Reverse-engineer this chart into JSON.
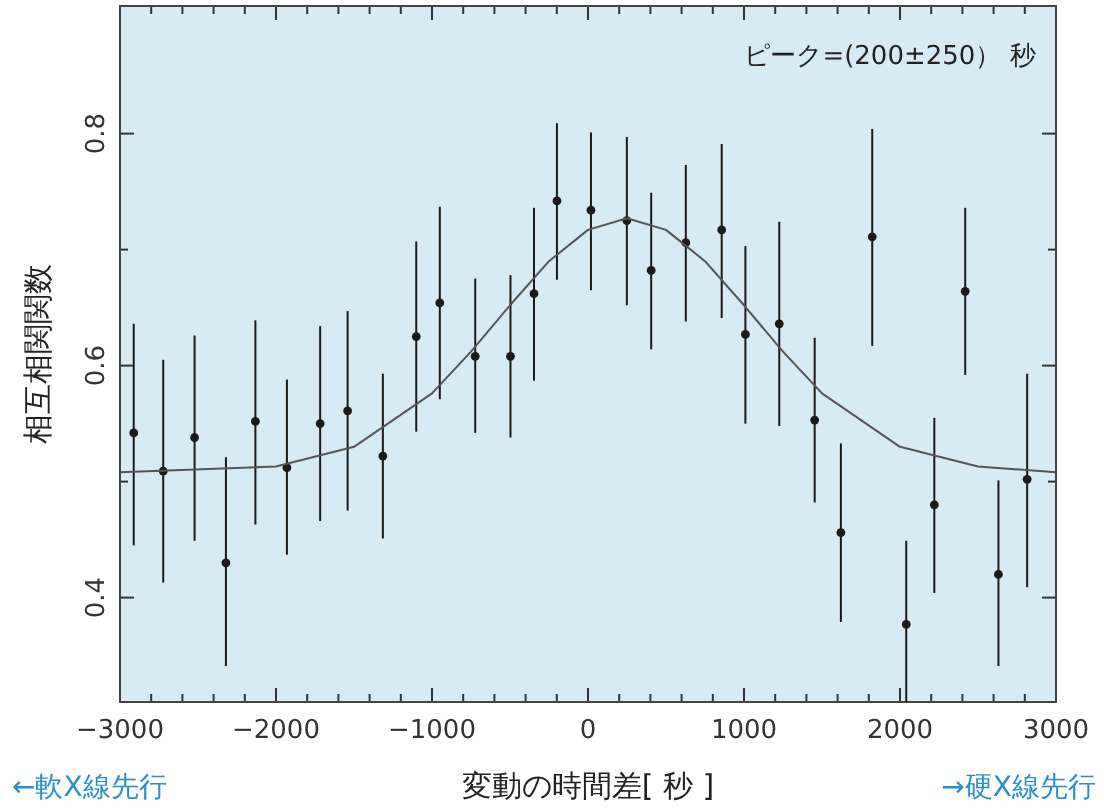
{
  "chart_data": {
    "type": "scatter",
    "xlabel": "変動の時間差[ 秒 ]",
    "ylabel": "相互相関関数",
    "annotations": [
      "ピーク=(200±250） 秒",
      "←軟X線先行",
      "→硬X線先行"
    ],
    "xlim": [
      -3000,
      3000
    ],
    "ylim": [
      0.31,
      0.91
    ],
    "xticks": [
      -3000,
      {
        "value": -2800,
        "label": null
      },
      {
        "value": -2600,
        "label": null
      },
      {
        "value": -2400,
        "label": null
      },
      {
        "value": -2200,
        "label": null
      },
      -2000,
      {
        "value": -1800,
        "label": null
      },
      {
        "value": -1600,
        "label": null
      },
      {
        "value": -1400,
        "label": null
      },
      {
        "value": -1200,
        "label": null
      },
      -1000,
      {
        "value": -800,
        "label": null
      },
      {
        "value": -600,
        "label": null
      },
      {
        "value": -400,
        "label": null
      },
      {
        "value": -200,
        "label": null
      },
      0,
      {
        "value": 200,
        "label": null
      },
      {
        "value": 400,
        "label": null
      },
      {
        "value": 600,
        "label": null
      },
      {
        "value": 800,
        "label": null
      },
      1000,
      {
        "value": 1200,
        "label": null
      },
      {
        "value": 1400,
        "label": null
      },
      {
        "value": 1600,
        "label": null
      },
      {
        "value": 1800,
        "label": null
      },
      2000,
      {
        "value": 2200,
        "label": null
      },
      {
        "value": 2400,
        "label": null
      },
      {
        "value": 2600,
        "label": null
      },
      {
        "value": 2800,
        "label": null
      },
      3000
    ],
    "yticks": [
      0.4,
      {
        "value": 0.5,
        "label": null
      },
      0.6,
      {
        "value": 0.7,
        "label": null
      },
      0.8
    ],
    "series": [
      {
        "marker": "circle",
        "color": "#1a1a1a",
        "x": [
          -2912,
          -2723,
          -2522,
          -2321,
          -2132,
          -1930,
          -1717,
          -1541,
          -1315,
          -1101,
          -950,
          -723,
          -497,
          -346,
          -199,
          19,
          249,
          405,
          627,
          857,
          1009,
          1226,
          1453,
          1621,
          1822,
          2040,
          2220,
          2418,
          2631,
          2815
        ],
        "values": [
          0.542,
          0.509,
          0.538,
          0.43,
          0.552,
          0.512,
          0.55,
          0.561,
          0.522,
          0.625,
          0.654,
          0.608,
          0.608,
          0.662,
          0.742,
          0.734,
          0.725,
          0.682,
          0.706,
          0.717,
          0.627,
          0.636,
          0.553,
          0.456,
          0.711,
          0.377,
          0.48,
          0.664,
          0.42,
          0.502
        ],
        "errors": [
          [
            0.445,
            0.636
          ],
          [
            0.413,
            0.605
          ],
          [
            0.449,
            0.626
          ],
          [
            0.341,
            0.521
          ],
          [
            0.463,
            0.639
          ],
          [
            0.437,
            0.588
          ],
          [
            0.466,
            0.634
          ],
          [
            0.475,
            0.647
          ],
          [
            0.451,
            0.593
          ],
          [
            0.543,
            0.707
          ],
          [
            0.571,
            0.737
          ],
          [
            0.542,
            0.675
          ],
          [
            0.538,
            0.678
          ],
          [
            0.587,
            0.736
          ],
          [
            0.674,
            0.809
          ],
          [
            0.665,
            0.801
          ],
          [
            0.652,
            0.797
          ],
          [
            0.614,
            0.749
          ],
          [
            0.638,
            0.773
          ],
          [
            0.641,
            0.791
          ],
          [
            0.55,
            0.703
          ],
          [
            0.548,
            0.724
          ],
          [
            0.482,
            0.624
          ],
          [
            0.379,
            0.533
          ],
          [
            0.617,
            0.804
          ],
          [
            0.31,
            0.449
          ],
          [
            0.404,
            0.555
          ],
          [
            0.592,
            0.736
          ],
          [
            0.341,
            0.501
          ],
          [
            0.409,
            0.593
          ]
        ]
      },
      {
        "type": "line",
        "color": "#555555",
        "x": [
          -3000,
          -2000,
          -1500,
          -1000,
          -750,
          -500,
          -250,
          0,
          250,
          500,
          750,
          1000,
          1250,
          1500,
          2000,
          2500,
          3000
        ],
        "values": [
          0.508,
          0.513,
          0.53,
          0.576,
          0.612,
          0.652,
          0.69,
          0.717,
          0.727,
          0.717,
          0.69,
          0.652,
          0.612,
          0.576,
          0.53,
          0.513,
          0.508
        ]
      }
    ]
  }
}
